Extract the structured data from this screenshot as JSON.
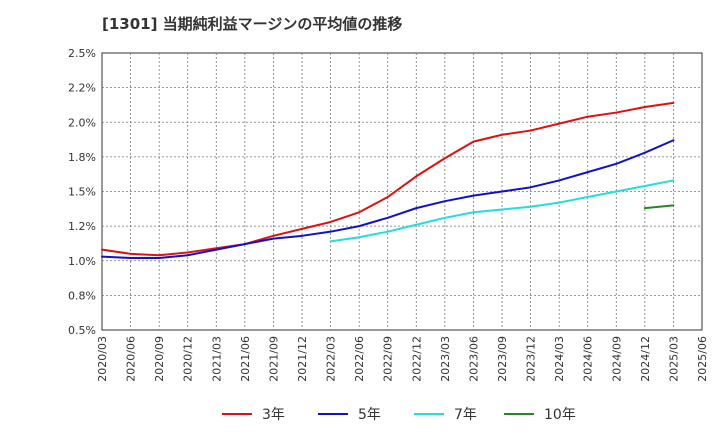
{
  "chart_data": {
    "type": "line",
    "title": "[1301] 当期純利益マージンの平均値の推移",
    "xlabel": "",
    "ylabel": "",
    "ylim": [
      0.5,
      2.5
    ],
    "yticks": [
      "0.5%",
      "0.8%",
      "1.0%",
      "1.2%",
      "1.5%",
      "1.8%",
      "2.0%",
      "2.2%",
      "2.5%"
    ],
    "ytick_values": [
      0.5,
      0.75,
      1.0,
      1.25,
      1.5,
      1.75,
      2.0,
      2.25,
      2.5
    ],
    "xticks": [
      "2020/03",
      "2020/06",
      "2020/09",
      "2020/12",
      "2021/03",
      "2021/06",
      "2021/09",
      "2021/12",
      "2022/03",
      "2022/06",
      "2022/09",
      "2022/12",
      "2023/03",
      "2023/06",
      "2023/09",
      "2023/12",
      "2024/03",
      "2024/06",
      "2024/09",
      "2024/12",
      "2025/03",
      "2025/06"
    ],
    "grid": true,
    "legend_position": "bottom",
    "series": [
      {
        "name": "3年",
        "color": "#dd1111",
        "x": [
          "2020/03",
          "2020/06",
          "2020/09",
          "2020/12",
          "2021/03",
          "2021/06",
          "2021/09",
          "2021/12",
          "2022/03",
          "2022/06",
          "2022/09",
          "2022/12",
          "2023/03",
          "2023/06",
          "2023/09",
          "2023/12",
          "2024/03",
          "2024/06",
          "2024/09",
          "2024/12",
          "2025/03"
        ],
        "values": [
          1.08,
          1.05,
          1.04,
          1.06,
          1.09,
          1.12,
          1.18,
          1.23,
          1.28,
          1.35,
          1.46,
          1.61,
          1.74,
          1.86,
          1.91,
          1.94,
          1.99,
          2.04,
          2.07,
          2.11,
          2.14
        ]
      },
      {
        "name": "5年",
        "color": "#1111cc",
        "x": [
          "2020/03",
          "2020/06",
          "2020/09",
          "2020/12",
          "2021/03",
          "2021/06",
          "2021/09",
          "2021/12",
          "2022/03",
          "2022/06",
          "2022/09",
          "2022/12",
          "2023/03",
          "2023/06",
          "2023/09",
          "2023/12",
          "2024/03",
          "2024/06",
          "2024/09",
          "2024/12",
          "2025/03"
        ],
        "values": [
          1.03,
          1.02,
          1.02,
          1.04,
          1.08,
          1.12,
          1.16,
          1.18,
          1.21,
          1.25,
          1.31,
          1.38,
          1.43,
          1.47,
          1.5,
          1.53,
          1.58,
          1.64,
          1.7,
          1.78,
          1.87
        ]
      },
      {
        "name": "7年",
        "color": "#22dddd",
        "x": [
          "2022/03",
          "2022/06",
          "2022/09",
          "2022/12",
          "2023/03",
          "2023/06",
          "2023/09",
          "2023/12",
          "2024/03",
          "2024/06",
          "2024/09",
          "2024/12",
          "2025/03"
        ],
        "values": [
          1.14,
          1.17,
          1.21,
          1.26,
          1.31,
          1.35,
          1.37,
          1.39,
          1.42,
          1.46,
          1.5,
          1.54,
          1.58
        ]
      },
      {
        "name": "10年",
        "color": "#228822",
        "x": [
          "2024/12",
          "2025/03"
        ],
        "values": [
          1.38,
          1.4
        ]
      }
    ]
  }
}
